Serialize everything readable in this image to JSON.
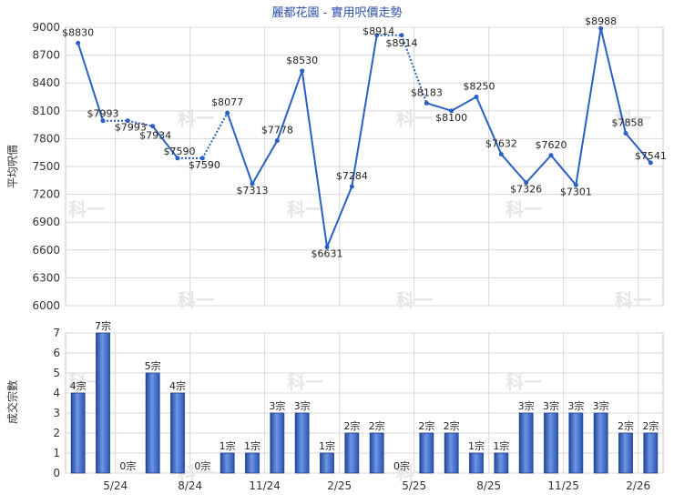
{
  "chart_data": [
    {
      "type": "line",
      "title": "麗都花園 - 實用呎價走勢",
      "ylabel": "平均呎價",
      "ylim": [
        6000,
        9000
      ],
      "yticks": [
        "9000",
        "8700",
        "8400",
        "8100",
        "7800",
        "7500",
        "7200",
        "6900",
        "6600",
        "6300",
        "6000"
      ],
      "grid": true,
      "series": [
        {
          "values": [
            8830,
            7993,
            7993,
            7934,
            7590,
            7590,
            8077,
            7313,
            7778,
            8530,
            6631,
            7284,
            8914,
            8914,
            8183,
            8100,
            8250,
            7632,
            7326,
            7620,
            7301,
            8988,
            7858,
            7541
          ],
          "labels": [
            "$8830",
            "$7993",
            "$7993",
            "$7934",
            "$7590",
            "$7590",
            "$8077",
            "$7313",
            "$7778",
            "$8530",
            "$6631",
            "$7284",
            "$8914",
            "$8914",
            "$8183",
            "$8100",
            "$8250",
            "$7632",
            "$7326",
            "$7620",
            "$7301",
            "$8988",
            "$7858",
            "$7541"
          ],
          "color": "#2a5fc4"
        }
      ]
    },
    {
      "type": "bar",
      "ylabel": "成交宗數",
      "ylim": [
        0,
        7
      ],
      "yticks": [
        "7",
        "6",
        "5",
        "4",
        "3",
        "2",
        "1",
        "0"
      ],
      "categories": [
        "5/24",
        "8/24",
        "11/24",
        "2/25",
        "5/25",
        "8/25",
        "11/25",
        "2/26"
      ],
      "values": [
        4,
        7,
        0,
        5,
        4,
        0,
        1,
        1,
        3,
        3,
        1,
        2,
        2,
        0,
        2,
        2,
        1,
        1,
        3,
        3,
        3,
        3,
        2,
        2
      ],
      "labels": [
        "4宗",
        "7宗",
        "0宗",
        "5宗",
        "4宗",
        "0宗",
        "1宗",
        "1宗",
        "3宗",
        "3宗",
        "1宗",
        "2宗",
        "2宗",
        "0宗",
        "2宗",
        "2宗",
        "1宗",
        "1宗",
        "3宗",
        "3宗",
        "3宗",
        "3宗",
        "2宗",
        "2宗"
      ],
      "color": "#3a66c8"
    }
  ],
  "watermark": "科一"
}
